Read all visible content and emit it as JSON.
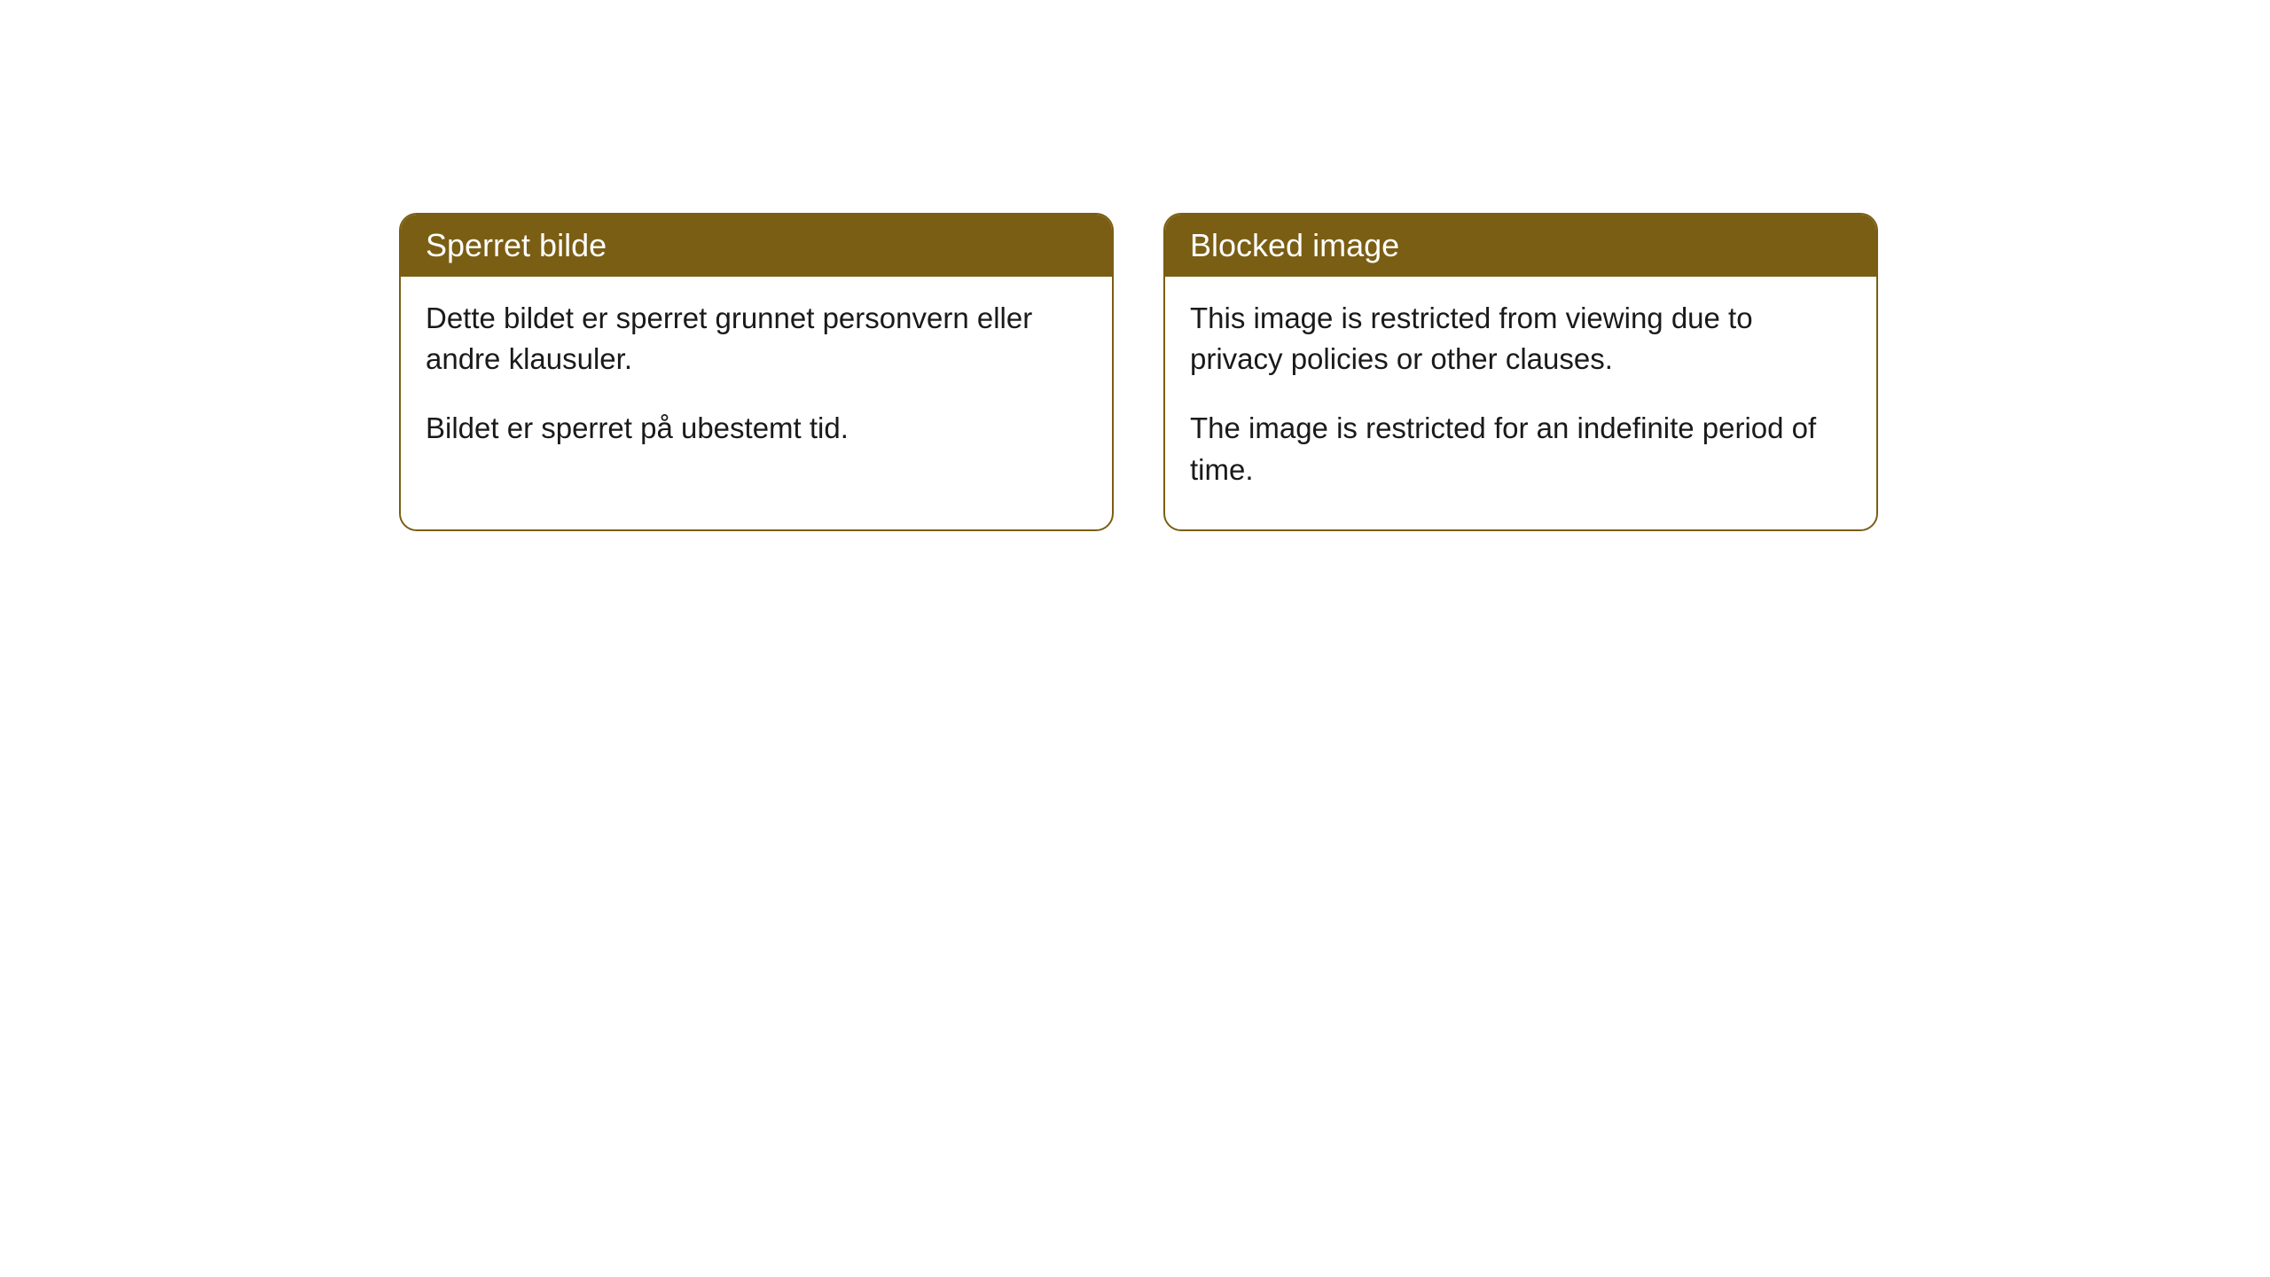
{
  "cards": [
    {
      "title": "Sperret bilde",
      "paragraph1": "Dette bildet er sperret grunnet personvern eller andre klausuler.",
      "paragraph2": "Bildet er sperret på ubestemt tid."
    },
    {
      "title": "Blocked image",
      "paragraph1": "This image is restricted from viewing due to privacy policies or other clauses.",
      "paragraph2": "The image is restricted for an indefinite period of time."
    }
  ],
  "style": {
    "header_bg": "#7a5e14",
    "header_text_color": "#ffffff",
    "border_color": "#7a5e14",
    "body_bg": "#ffffff",
    "body_text_color": "#1a1a1a",
    "border_radius": "20px",
    "title_fontsize": "36px",
    "body_fontsize": "33px"
  }
}
